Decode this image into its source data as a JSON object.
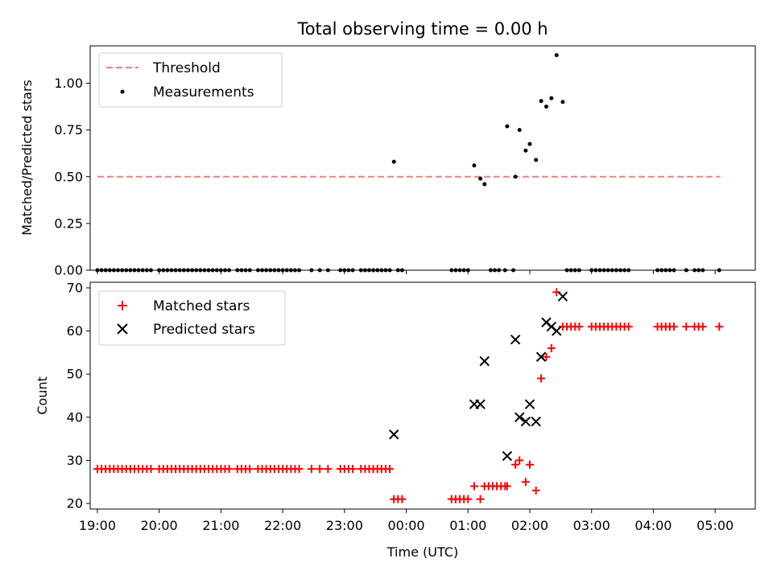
{
  "chart_data": [
    {
      "type": "scatter",
      "title": "Total observing time = 0.00 h",
      "xlabel": "",
      "ylabel": "Matched/Predicted stars",
      "ylim": [
        0,
        1.2
      ],
      "xlim": [
        "18:53",
        "05:39"
      ],
      "yticks": [
        "0.00",
        "0.25",
        "0.50",
        "0.75",
        "1.00"
      ],
      "grid": false,
      "legend_position": "top-left",
      "threshold": {
        "name": "Threshold",
        "value": 0.5,
        "x_range": [
          "19:00",
          "05:05"
        ],
        "color": "#f08080",
        "style": "dashed"
      },
      "series": [
        {
          "name": "Measurements",
          "color": "#000000",
          "marker": "dot",
          "points": [
            [
              "19:00",
              0
            ],
            [
              "19:04",
              0
            ],
            [
              "19:08",
              0
            ],
            [
              "19:12",
              0
            ],
            [
              "19:16",
              0
            ],
            [
              "19:20",
              0
            ],
            [
              "19:24",
              0
            ],
            [
              "19:28",
              0
            ],
            [
              "19:32",
              0
            ],
            [
              "19:36",
              0
            ],
            [
              "19:40",
              0
            ],
            [
              "19:44",
              0
            ],
            [
              "19:48",
              0
            ],
            [
              "19:52",
              0
            ],
            [
              "20:00",
              0
            ],
            [
              "20:04",
              0
            ],
            [
              "20:08",
              0
            ],
            [
              "20:12",
              0
            ],
            [
              "20:16",
              0
            ],
            [
              "20:20",
              0
            ],
            [
              "20:24",
              0
            ],
            [
              "20:28",
              0
            ],
            [
              "20:32",
              0
            ],
            [
              "20:36",
              0
            ],
            [
              "20:40",
              0
            ],
            [
              "20:44",
              0
            ],
            [
              "20:48",
              0
            ],
            [
              "20:52",
              0
            ],
            [
              "20:56",
              0
            ],
            [
              "21:00",
              0
            ],
            [
              "21:04",
              0
            ],
            [
              "21:08",
              0
            ],
            [
              "21:16",
              0
            ],
            [
              "21:20",
              0
            ],
            [
              "21:24",
              0
            ],
            [
              "21:28",
              0
            ],
            [
              "21:36",
              0
            ],
            [
              "21:40",
              0
            ],
            [
              "21:44",
              0
            ],
            [
              "21:48",
              0
            ],
            [
              "21:52",
              0
            ],
            [
              "21:56",
              0
            ],
            [
              "22:00",
              0
            ],
            [
              "22:04",
              0
            ],
            [
              "22:08",
              0
            ],
            [
              "22:12",
              0
            ],
            [
              "22:16",
              0
            ],
            [
              "22:28",
              0
            ],
            [
              "22:36",
              0
            ],
            [
              "22:44",
              0
            ],
            [
              "22:56",
              0
            ],
            [
              "23:00",
              0
            ],
            [
              "23:04",
              0
            ],
            [
              "23:08",
              0
            ],
            [
              "23:16",
              0
            ],
            [
              "23:20",
              0
            ],
            [
              "23:24",
              0
            ],
            [
              "23:28",
              0
            ],
            [
              "23:32",
              0
            ],
            [
              "23:36",
              0
            ],
            [
              "23:40",
              0
            ],
            [
              "23:44",
              0
            ],
            [
              "23:48",
              0.58
            ],
            [
              "23:52",
              0
            ],
            [
              "23:56",
              0
            ],
            [
              "00:44",
              0
            ],
            [
              "00:48",
              0
            ],
            [
              "00:52",
              0
            ],
            [
              "00:56",
              0
            ],
            [
              "01:00",
              0
            ],
            [
              "01:06",
              0.56
            ],
            [
              "01:12",
              0.49
            ],
            [
              "01:16",
              0.46
            ],
            [
              "01:22",
              0
            ],
            [
              "01:26",
              0
            ],
            [
              "01:30",
              0
            ],
            [
              "01:36",
              0
            ],
            [
              "01:38",
              0.77
            ],
            [
              "01:44",
              0
            ],
            [
              "01:46",
              0.5
            ],
            [
              "01:50",
              0.75
            ],
            [
              "01:56",
              0.64
            ],
            [
              "02:00",
              0.675
            ],
            [
              "02:06",
              0.59
            ],
            [
              "02:11",
              0.905
            ],
            [
              "02:16",
              0.875
            ],
            [
              "02:21",
              0.92
            ],
            [
              "02:26",
              1.15
            ],
            [
              "02:32",
              0.9
            ],
            [
              "02:36",
              0
            ],
            [
              "02:40",
              0
            ],
            [
              "02:44",
              0
            ],
            [
              "02:48",
              0
            ],
            [
              "03:00",
              0
            ],
            [
              "03:04",
              0
            ],
            [
              "03:08",
              0
            ],
            [
              "03:12",
              0
            ],
            [
              "03:16",
              0
            ],
            [
              "03:20",
              0
            ],
            [
              "03:24",
              0
            ],
            [
              "03:28",
              0
            ],
            [
              "03:32",
              0
            ],
            [
              "03:36",
              0
            ],
            [
              "04:04",
              0
            ],
            [
              "04:08",
              0
            ],
            [
              "04:12",
              0
            ],
            [
              "04:16",
              0
            ],
            [
              "04:20",
              0
            ],
            [
              "04:32",
              0
            ],
            [
              "04:40",
              0
            ],
            [
              "04:44",
              0
            ],
            [
              "04:48",
              0
            ],
            [
              "05:04",
              0
            ]
          ]
        }
      ]
    },
    {
      "type": "scatter",
      "title": "",
      "xlabel": "Time (UTC)",
      "ylabel": "Count",
      "ylim": [
        18.7,
        71.3
      ],
      "xlim": [
        "18:53",
        "05:39"
      ],
      "yticks": [
        "20",
        "30",
        "40",
        "50",
        "60",
        "70"
      ],
      "xticks": [
        "19:00",
        "20:00",
        "21:00",
        "22:00",
        "23:00",
        "00:00",
        "01:00",
        "02:00",
        "03:00",
        "04:00",
        "05:00"
      ],
      "grid": false,
      "legend_position": "top-left",
      "series": [
        {
          "name": "Matched stars",
          "color": "#ff0000",
          "marker": "plus",
          "points": [
            [
              "19:00",
              28
            ],
            [
              "19:04",
              28
            ],
            [
              "19:08",
              28
            ],
            [
              "19:12",
              28
            ],
            [
              "19:16",
              28
            ],
            [
              "19:20",
              28
            ],
            [
              "19:24",
              28
            ],
            [
              "19:28",
              28
            ],
            [
              "19:32",
              28
            ],
            [
              "19:36",
              28
            ],
            [
              "19:40",
              28
            ],
            [
              "19:44",
              28
            ],
            [
              "19:48",
              28
            ],
            [
              "19:52",
              28
            ],
            [
              "20:00",
              28
            ],
            [
              "20:04",
              28
            ],
            [
              "20:08",
              28
            ],
            [
              "20:12",
              28
            ],
            [
              "20:16",
              28
            ],
            [
              "20:20",
              28
            ],
            [
              "20:24",
              28
            ],
            [
              "20:28",
              28
            ],
            [
              "20:32",
              28
            ],
            [
              "20:36",
              28
            ],
            [
              "20:40",
              28
            ],
            [
              "20:44",
              28
            ],
            [
              "20:48",
              28
            ],
            [
              "20:52",
              28
            ],
            [
              "20:56",
              28
            ],
            [
              "21:00",
              28
            ],
            [
              "21:04",
              28
            ],
            [
              "21:08",
              28
            ],
            [
              "21:16",
              28
            ],
            [
              "21:20",
              28
            ],
            [
              "21:24",
              28
            ],
            [
              "21:28",
              28
            ],
            [
              "21:36",
              28
            ],
            [
              "21:40",
              28
            ],
            [
              "21:44",
              28
            ],
            [
              "21:48",
              28
            ],
            [
              "21:52",
              28
            ],
            [
              "21:56",
              28
            ],
            [
              "22:00",
              28
            ],
            [
              "22:04",
              28
            ],
            [
              "22:08",
              28
            ],
            [
              "22:12",
              28
            ],
            [
              "22:16",
              28
            ],
            [
              "22:28",
              28
            ],
            [
              "22:36",
              28
            ],
            [
              "22:44",
              28
            ],
            [
              "22:56",
              28
            ],
            [
              "23:00",
              28
            ],
            [
              "23:04",
              28
            ],
            [
              "23:08",
              28
            ],
            [
              "23:16",
              28
            ],
            [
              "23:20",
              28
            ],
            [
              "23:24",
              28
            ],
            [
              "23:28",
              28
            ],
            [
              "23:32",
              28
            ],
            [
              "23:36",
              28
            ],
            [
              "23:40",
              28
            ],
            [
              "23:44",
              28
            ],
            [
              "23:48",
              21
            ],
            [
              "23:52",
              21
            ],
            [
              "23:56",
              21
            ],
            [
              "00:44",
              21
            ],
            [
              "00:48",
              21
            ],
            [
              "00:52",
              21
            ],
            [
              "00:56",
              21
            ],
            [
              "01:00",
              21
            ],
            [
              "01:06",
              24
            ],
            [
              "01:12",
              21
            ],
            [
              "01:16",
              24
            ],
            [
              "01:20",
              24
            ],
            [
              "01:24",
              24
            ],
            [
              "01:28",
              24
            ],
            [
              "01:32",
              24
            ],
            [
              "01:36",
              24
            ],
            [
              "01:38",
              24
            ],
            [
              "01:46",
              29
            ],
            [
              "01:50",
              30
            ],
            [
              "01:56",
              25
            ],
            [
              "02:00",
              29
            ],
            [
              "02:06",
              23
            ],
            [
              "02:11",
              49
            ],
            [
              "02:16",
              54
            ],
            [
              "02:21",
              56
            ],
            [
              "02:26",
              69
            ],
            [
              "02:32",
              61
            ],
            [
              "02:36",
              61
            ],
            [
              "02:40",
              61
            ],
            [
              "02:44",
              61
            ],
            [
              "02:48",
              61
            ],
            [
              "03:00",
              61
            ],
            [
              "03:04",
              61
            ],
            [
              "03:08",
              61
            ],
            [
              "03:12",
              61
            ],
            [
              "03:16",
              61
            ],
            [
              "03:20",
              61
            ],
            [
              "03:24",
              61
            ],
            [
              "03:28",
              61
            ],
            [
              "03:32",
              61
            ],
            [
              "03:36",
              61
            ],
            [
              "04:04",
              61
            ],
            [
              "04:08",
              61
            ],
            [
              "04:12",
              61
            ],
            [
              "04:16",
              61
            ],
            [
              "04:20",
              61
            ],
            [
              "04:32",
              61
            ],
            [
              "04:40",
              61
            ],
            [
              "04:44",
              61
            ],
            [
              "04:48",
              61
            ],
            [
              "05:04",
              61
            ]
          ]
        },
        {
          "name": "Predicted stars",
          "color": "#000000",
          "marker": "x",
          "points": [
            [
              "23:48",
              36
            ],
            [
              "01:06",
              43
            ],
            [
              "01:12",
              43
            ],
            [
              "01:16",
              53
            ],
            [
              "01:38",
              31
            ],
            [
              "01:46",
              58
            ],
            [
              "01:50",
              40
            ],
            [
              "01:56",
              39
            ],
            [
              "02:00",
              43
            ],
            [
              "02:06",
              39
            ],
            [
              "02:11",
              54
            ],
            [
              "02:16",
              62
            ],
            [
              "02:21",
              61
            ],
            [
              "02:26",
              60
            ],
            [
              "02:32",
              68
            ]
          ]
        }
      ]
    }
  ]
}
